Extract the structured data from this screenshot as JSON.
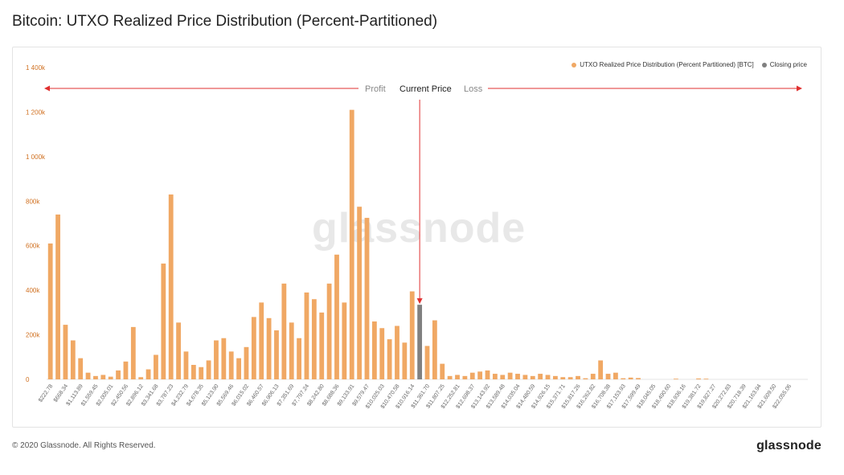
{
  "title": "Bitcoin: UTXO Realized Price Distribution (Percent-Partitioned)",
  "footer": "© 2020 Glassnode. All Rights Reserved.",
  "brand": "glassnode",
  "watermark": "glassnode",
  "annotation": {
    "profit": "Profit",
    "current": "Current Price",
    "loss": "Loss"
  },
  "legend": [
    {
      "label": "UTXO Realized Price Distribution (Percent Partitioned) [BTC]",
      "color": "#f0a864"
    },
    {
      "label": "Closing price",
      "color": "#808080"
    }
  ],
  "colors": {
    "bar": "#f0a864",
    "current": "#808080",
    "tick": "#d07020",
    "arrow": "#e03030"
  },
  "chart_data": {
    "type": "bar",
    "ylim": [
      0,
      1400000
    ],
    "yticks": [
      {
        "value": 0,
        "label": "0"
      },
      {
        "value": 200000,
        "label": "200k"
      },
      {
        "value": 400000,
        "label": "400k"
      },
      {
        "value": 600000,
        "label": "600k"
      },
      {
        "value": 800000,
        "label": "800k"
      },
      {
        "value": 1000000,
        "label": "1 000k"
      },
      {
        "value": 1200000,
        "label": "1 200k"
      },
      {
        "value": 1400000,
        "label": "1 400k"
      }
    ],
    "current_index": 49,
    "xtick_labels": [
      "$222.78",
      "$668.34",
      "$1,113.89",
      "$1,559.45",
      "$2,005.01",
      "$2,450.56",
      "$2,896.12",
      "$3,341.68",
      "$3,787.23",
      "$4,232.79",
      "$4,678.35",
      "$5,123.90",
      "$5,569.46",
      "$6,015.02",
      "$6,460.57",
      "$6,906.13",
      "$7,351.69",
      "$7,797.24",
      "$8,242.80",
      "$8,688.36",
      "$9,133.91",
      "$9,579.47",
      "$10,025.03",
      "$10,470.58",
      "$10,916.14",
      "$11,361.70",
      "$11,807.25",
      "$12,252.81",
      "$12,698.37",
      "$13,143.92",
      "$13,589.48",
      "$14,035.04",
      "$14,480.59",
      "$14,926.15",
      "$15,371.71",
      "$15,817.26",
      "$16,262.82",
      "$16,708.38",
      "$17,153.93",
      "$17,599.49",
      "$18,045.05",
      "$18,490.60",
      "$18,936.16",
      "$19,381.72",
      "$19,827.27",
      "$20,272.83",
      "$20,718.39",
      "$21,163.94",
      "$21,609.50",
      "$22,055.06"
    ],
    "values": [
      610000,
      740000,
      245000,
      175000,
      95000,
      30000,
      15000,
      20000,
      12000,
      40000,
      80000,
      235000,
      10000,
      45000,
      110000,
      520000,
      830000,
      255000,
      125000,
      65000,
      55000,
      85000,
      175000,
      185000,
      125000,
      95000,
      145000,
      280000,
      345000,
      275000,
      220000,
      430000,
      255000,
      185000,
      390000,
      360000,
      300000,
      430000,
      560000,
      345000,
      1210000,
      775000,
      725000,
      260000,
      230000,
      180000,
      240000,
      165000,
      395000,
      335000,
      150000,
      265000,
      70000,
      15000,
      20000,
      15000,
      30000,
      35000,
      40000,
      25000,
      20000,
      30000,
      25000,
      20000,
      15000,
      25000,
      20000,
      15000,
      10000,
      10000,
      15000,
      5000,
      25000,
      85000,
      25000,
      30000,
      5000,
      8000,
      6000,
      0,
      0,
      0,
      0,
      3000,
      0,
      0,
      4000,
      3000,
      0,
      0,
      0,
      0,
      0,
      0,
      0,
      0,
      0,
      0,
      0,
      0,
      0
    ]
  }
}
